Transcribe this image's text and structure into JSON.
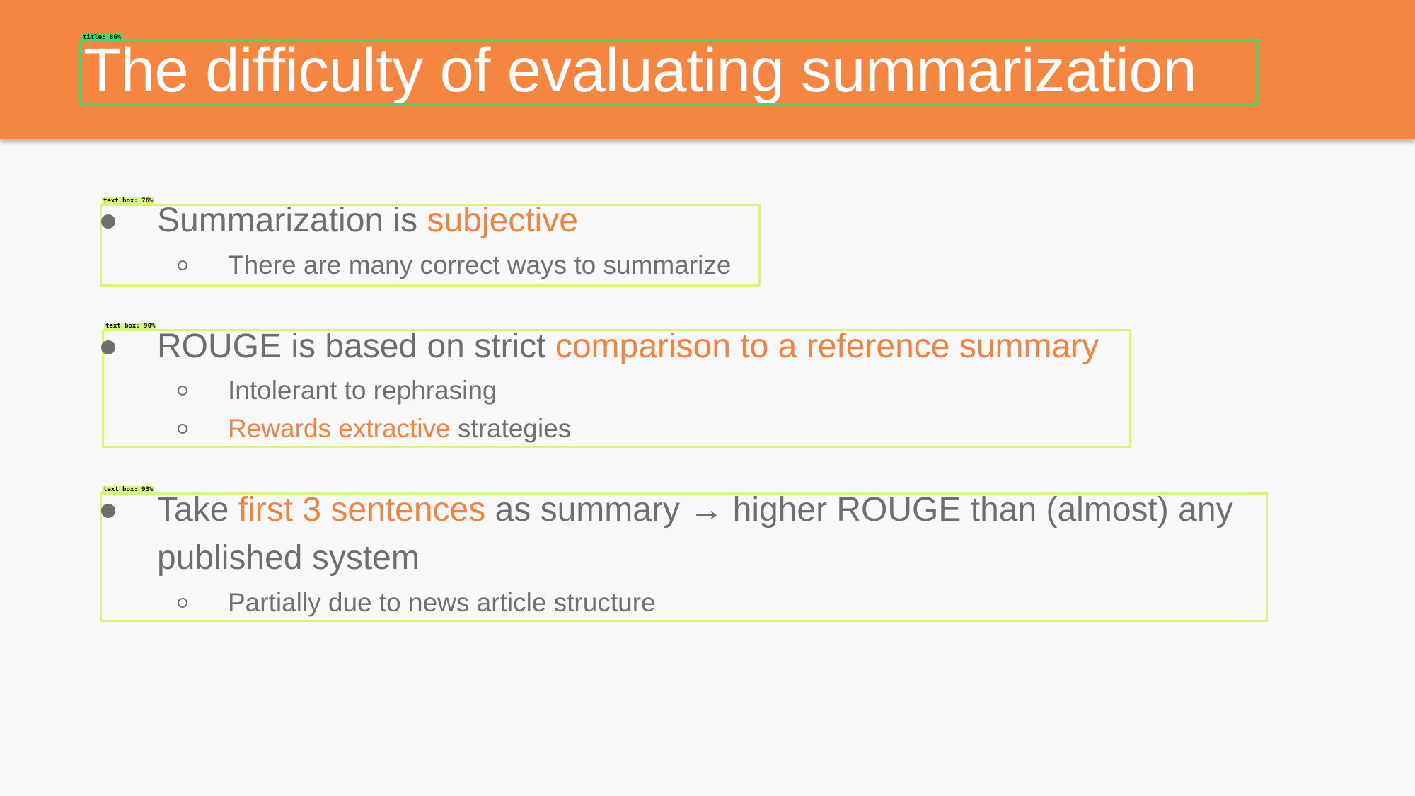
{
  "slide": {
    "title": "The difficulty of evaluating summarization"
  },
  "detections": {
    "title_tag": "title: 86%",
    "box1_tag": "text box: 76%",
    "box2_tag": "text box: 90%",
    "box3_tag": "text box: 93%"
  },
  "bullets": [
    {
      "main_prefix": "Summarization is ",
      "main_highlight": "subjective",
      "sub": [
        {
          "text": "There are many correct ways to summarize"
        }
      ]
    },
    {
      "main_prefix": "ROUGE is based on strict ",
      "main_highlight": "comparison to a reference summary",
      "sub": [
        {
          "text": "Intolerant to rephrasing"
        },
        {
          "highlight": "Rewards extractive",
          "suffix": " strategies"
        }
      ]
    },
    {
      "main_prefix": "Take ",
      "main_highlight": "first 3 sentences",
      "main_suffix": " as summary → higher ROUGE than (almost) any published system",
      "sub": [
        {
          "text": "Partially due to news article structure"
        }
      ]
    }
  ],
  "colors": {
    "header": "#f58642",
    "highlight": "#ef8341",
    "body_text": "#6e6e6e",
    "background": "#f8f8f8",
    "title_box": "#3ddc6a",
    "text_box": "#d6f57a"
  }
}
